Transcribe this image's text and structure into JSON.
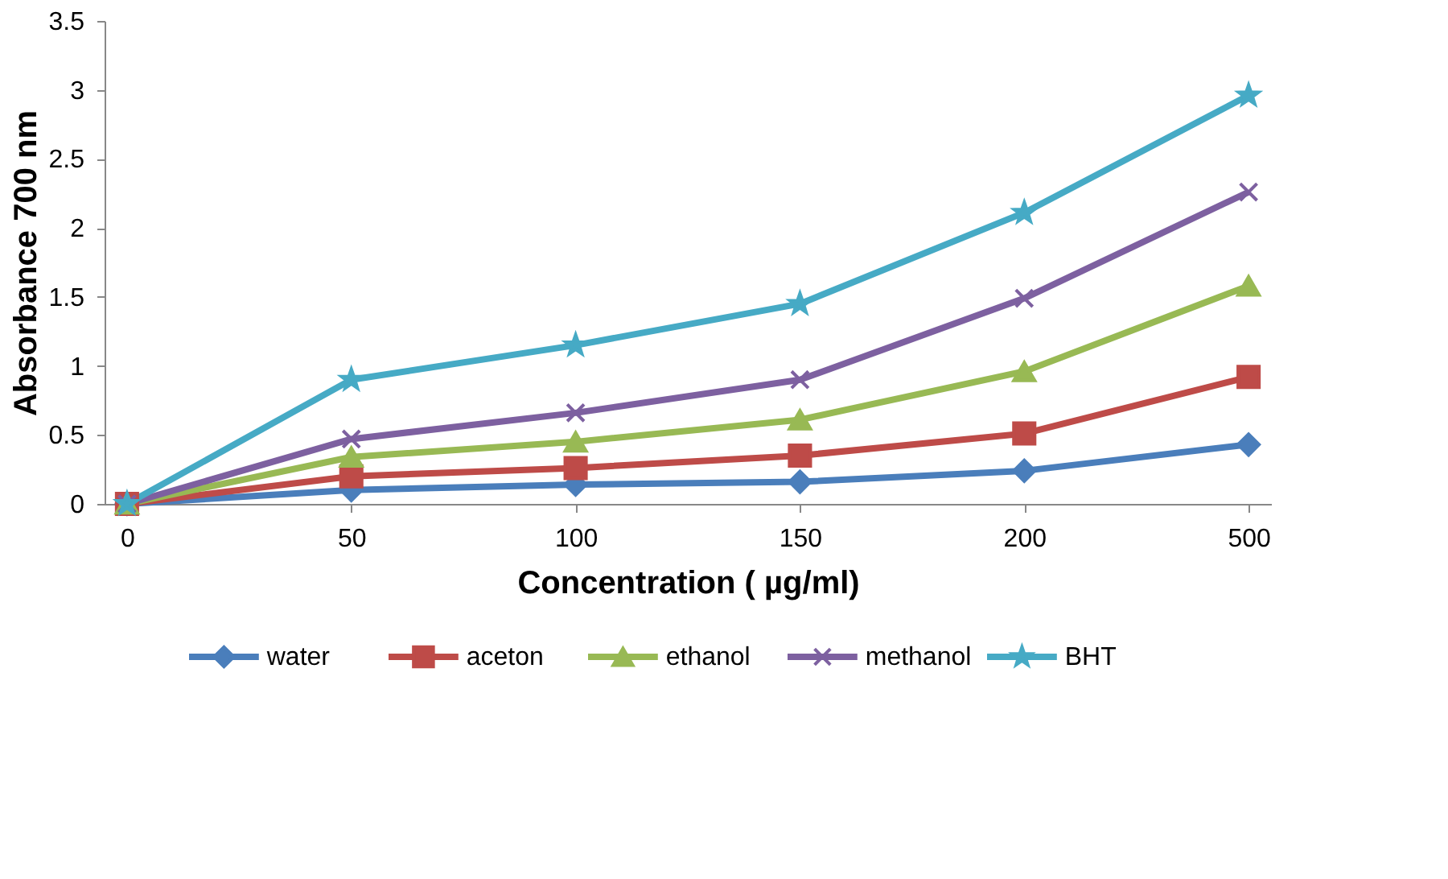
{
  "chart_data": {
    "type": "line",
    "xlabel": "Concentration ( µg/ml)",
    "ylabel": "Absorbance 700 nm",
    "categories": [
      "0",
      "50",
      "100",
      "150",
      "200",
      "500"
    ],
    "series": [
      {
        "name": "water",
        "color": "#4a7ebb",
        "marker": "diamond",
        "values": [
          0,
          0.1,
          0.14,
          0.16,
          0.24,
          0.43
        ]
      },
      {
        "name": "aceton",
        "color": "#be4b48",
        "marker": "square",
        "values": [
          0,
          0.2,
          0.26,
          0.35,
          0.51,
          0.92
        ]
      },
      {
        "name": "ethanol",
        "color": "#98b954",
        "marker": "triangle",
        "values": [
          0,
          0.34,
          0.45,
          0.61,
          0.96,
          1.58
        ]
      },
      {
        "name": "methanol",
        "color": "#7d60a0",
        "marker": "cross",
        "values": [
          0,
          0.47,
          0.66,
          0.9,
          1.49,
          2.26
        ]
      },
      {
        "name": "BHT",
        "color": "#46aac5",
        "marker": "star",
        "values": [
          0,
          0.9,
          1.15,
          1.45,
          2.11,
          2.96
        ]
      }
    ],
    "ylim": [
      0,
      3.5
    ],
    "yticks": [
      0,
      0.5,
      1,
      1.5,
      2,
      2.5,
      3,
      3.5
    ],
    "grid": false,
    "legend": "bottom"
  }
}
